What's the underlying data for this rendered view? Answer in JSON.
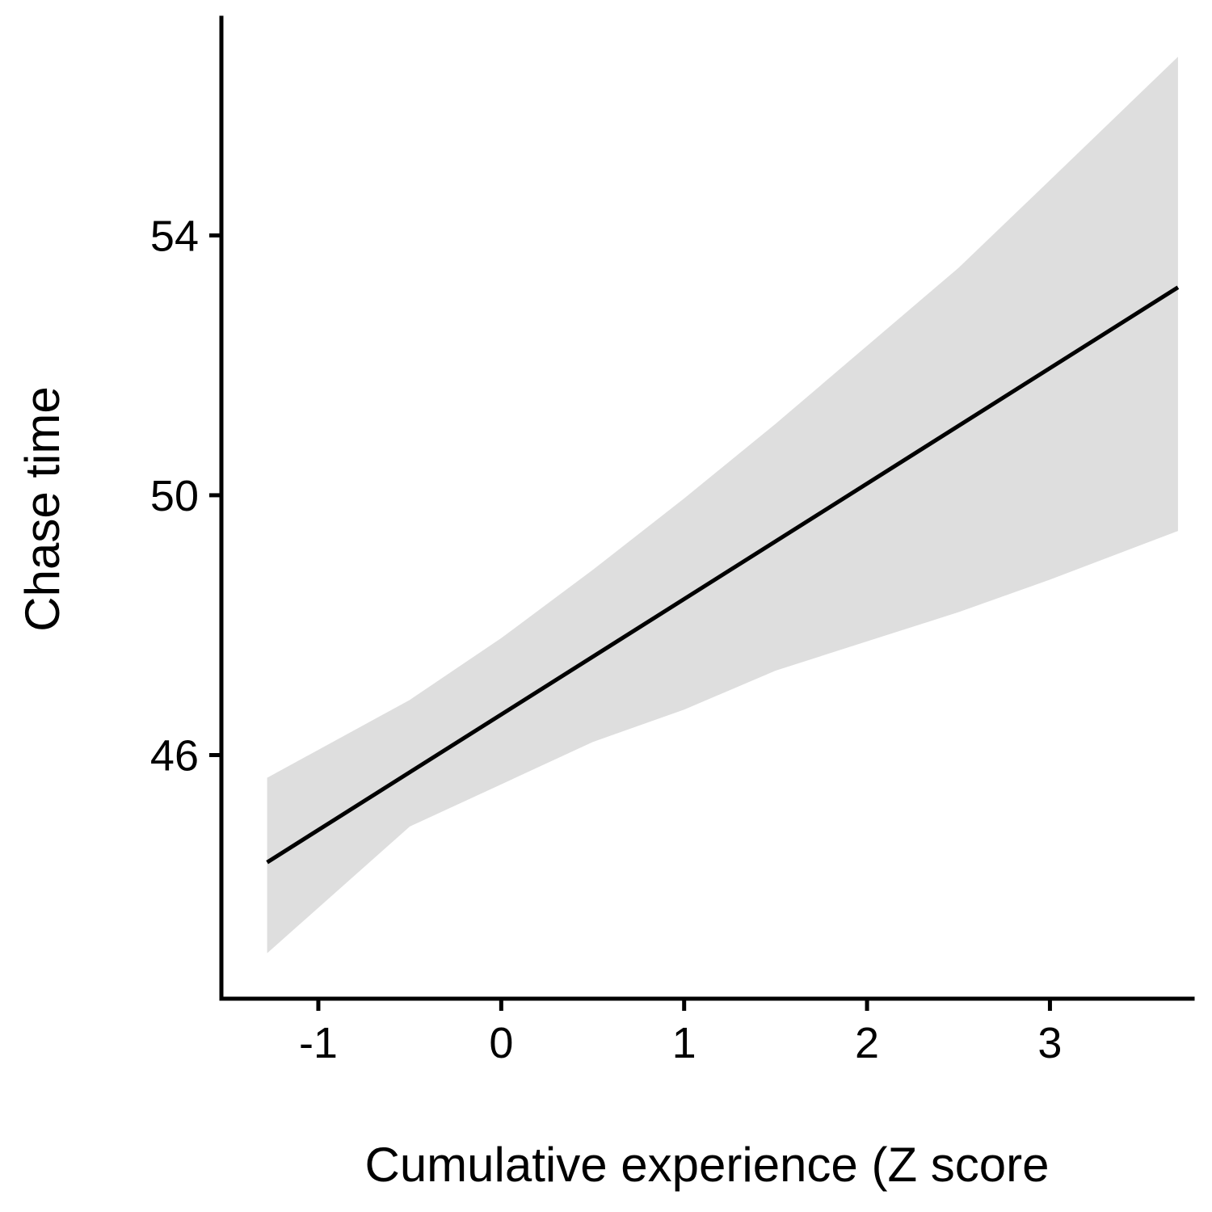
{
  "chart_data": {
    "type": "line",
    "title": "",
    "xlabel": "Cumulative experience (Z score",
    "ylabel": "Chase time",
    "xlim": [
      -1.53,
      3.78
    ],
    "ylim": [
      42.25,
      57.35
    ],
    "x_ticks": [
      -1,
      0,
      1,
      2,
      3
    ],
    "x_tick_labels": [
      "-1",
      "0",
      "1",
      "2",
      "3"
    ],
    "y_ticks": [
      46,
      50,
      54
    ],
    "y_tick_labels": [
      "46",
      "50",
      "54"
    ],
    "grid": false,
    "legend": "none",
    "series": [
      {
        "type": "line",
        "x": [
          -1.28,
          3.7
        ],
        "y": [
          44.35,
          53.2
        ]
      }
    ],
    "confidence_band": {
      "x": [
        -1.28,
        -0.5,
        0.0,
        0.5,
        1.0,
        1.5,
        2.0,
        2.5,
        3.0,
        3.7
      ],
      "upper": [
        45.65,
        46.85,
        47.8,
        48.85,
        49.95,
        51.1,
        52.3,
        53.5,
        54.85,
        56.75
      ],
      "lower": [
        42.95,
        44.9,
        45.55,
        46.2,
        46.7,
        47.3,
        47.75,
        48.2,
        48.7,
        49.45
      ]
    },
    "colors": {
      "line": "#000000",
      "band": "#dedede",
      "axis": "#000000",
      "background": "#ffffff"
    }
  }
}
